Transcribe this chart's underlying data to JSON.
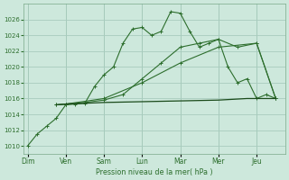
{
  "title": "",
  "xlabel": "Pression niveau de la mer( hPa )",
  "ylabel": "",
  "background_color": "#cde8dc",
  "grid_color": "#a8ccbe",
  "line_color_main": "#2d6e2d",
  "line_color_flat": "#1a4a1a",
  "ylim": [
    1009,
    1028
  ],
  "yticks": [
    1010,
    1012,
    1014,
    1016,
    1018,
    1020,
    1022,
    1024,
    1026
  ],
  "days": [
    "Dim",
    "Ven",
    "Sam",
    "Lun",
    "Mar",
    "Mer",
    "Jeu"
  ],
  "day_positions": [
    0,
    2,
    4,
    6,
    8,
    10,
    12
  ],
  "xlim": [
    -0.2,
    13.5
  ],
  "series1": {
    "x": [
      0,
      0.5,
      1.0,
      1.5,
      2.0,
      2.5,
      3.0,
      3.5,
      4.0,
      4.5,
      5.0,
      5.5,
      6.0,
      6.5,
      7.0,
      7.5,
      8.0,
      8.5,
      9.0,
      9.5,
      10.0,
      10.5,
      11.0,
      11.5,
      12.0,
      12.5,
      13.0
    ],
    "y": [
      1010.0,
      1011.5,
      1012.5,
      1013.5,
      1015.2,
      1015.3,
      1015.4,
      1017.5,
      1019.0,
      1020.0,
      1023.0,
      1024.8,
      1025.0,
      1024.0,
      1024.5,
      1027.0,
      1026.8,
      1024.5,
      1022.5,
      1023.0,
      1023.5,
      1020.0,
      1018.0,
      1018.5,
      1016.0,
      1016.5,
      1016.0
    ]
  },
  "series2": {
    "x": [
      1.5,
      2.0,
      3.0,
      4.0,
      5.0,
      6.0,
      7.0,
      8.0,
      9.0,
      10.0,
      11.0,
      12.0,
      13.0
    ],
    "y": [
      1015.2,
      1015.3,
      1015.5,
      1015.8,
      1016.5,
      1018.5,
      1020.5,
      1022.5,
      1023.0,
      1023.5,
      1022.5,
      1023.0,
      1016.0
    ]
  },
  "series3": {
    "x": [
      1.5,
      2.0,
      4.0,
      6.0,
      8.0,
      10.0,
      12.0,
      13.0
    ],
    "y": [
      1015.2,
      1015.3,
      1016.0,
      1018.0,
      1020.5,
      1022.5,
      1023.0,
      1016.0
    ]
  },
  "series4": {
    "x": [
      1.5,
      2.0,
      4.0,
      6.0,
      8.0,
      10.0,
      11.5,
      12.0,
      13.0
    ],
    "y": [
      1015.2,
      1015.3,
      1015.5,
      1015.6,
      1015.7,
      1015.8,
      1016.0,
      1016.0,
      1016.0
    ]
  }
}
